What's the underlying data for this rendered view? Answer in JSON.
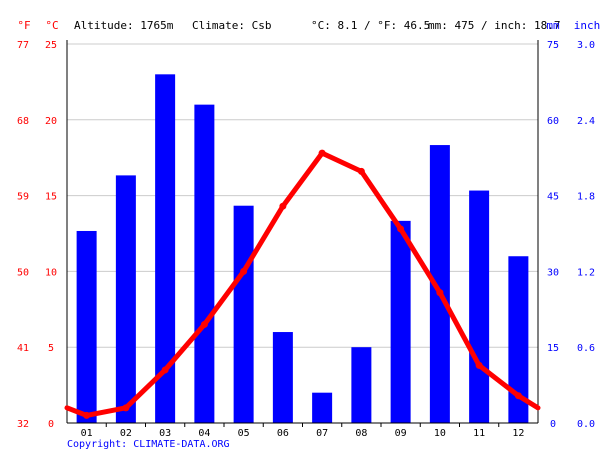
{
  "header": {
    "altitude": "Altitude: 1765m",
    "climate": "Climate: Csb",
    "temp_summary": "°C: 8.1 / °F: 46.5",
    "precip_summary": "mm: 475 / inch: 18.7"
  },
  "axis_units": {
    "fahrenheit": "°F",
    "celsius": "°C",
    "mm": "mm",
    "inch": "inch"
  },
  "copyright": "Copyright: CLIMATE-DATA.ORG",
  "colors": {
    "bars": "#0000ff",
    "line": "#ff0000",
    "grid": "#cccccc",
    "axis": "#000000",
    "temp_text": "#ff0000",
    "precip_text": "#0000ff",
    "copyright": "#0000ff"
  },
  "chart_data": {
    "type": "bar",
    "categories": [
      "01",
      "02",
      "03",
      "04",
      "05",
      "06",
      "07",
      "08",
      "09",
      "10",
      "11",
      "12"
    ],
    "series": [
      {
        "type": "bar",
        "axis": "right",
        "values": [
          38,
          49,
          69,
          63,
          43,
          18,
          6,
          15,
          40,
          55,
          46,
          33
        ]
      },
      {
        "type": "line",
        "axis": "left",
        "values": [
          0.5,
          1.0,
          3.5,
          6.5,
          10.0,
          14.3,
          17.8,
          16.6,
          12.8,
          8.6,
          3.8,
          1.8
        ]
      }
    ],
    "left_axis_celsius": {
      "ylim": [
        0,
        25
      ],
      "ticks": [
        "0",
        "5",
        "10",
        "15",
        "20",
        "25"
      ]
    },
    "left_axis_fahrenheit": {
      "ticks": [
        "32",
        "41",
        "50",
        "59",
        "68",
        "77"
      ]
    },
    "right_axis_mm": {
      "ylim": [
        0,
        75
      ],
      "ticks": [
        "0",
        "15",
        "30",
        "45",
        "60",
        "75"
      ]
    },
    "right_axis_inch": {
      "ticks": [
        "0.0",
        "0.6",
        "1.2",
        "1.8",
        "2.4",
        "3.0"
      ]
    },
    "line_ends": {
      "start_value": 1.0,
      "end_value": 1.0
    },
    "grid": true
  }
}
